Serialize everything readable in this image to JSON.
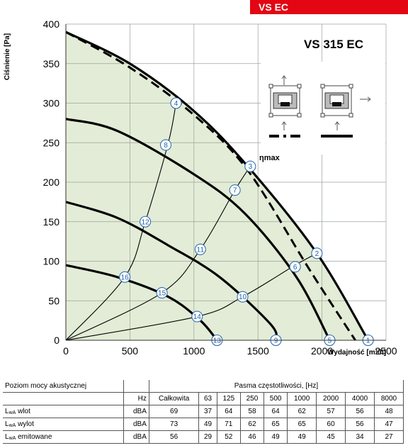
{
  "model_tag": "VS EC",
  "chart_data": {
    "type": "line",
    "title": "VS 315 EC",
    "xlabel": "Wydajność [m³/h]",
    "ylabel": "Ciśnienie [Pa]",
    "xlim": [
      0,
      2500
    ],
    "ylim": [
      0,
      400
    ],
    "x_ticks": [
      0,
      500,
      1000,
      1500,
      2000,
      2500
    ],
    "y_ticks": [
      0,
      50,
      100,
      150,
      200,
      250,
      300,
      350,
      400
    ],
    "grid": true,
    "eta_label": "ηmax",
    "fan_curves": [
      {
        "points": [
          [
            0,
            390
          ],
          [
            500,
            350
          ],
          [
            1000,
            290
          ],
          [
            1420,
            220
          ],
          [
            1960,
            110
          ],
          [
            2360,
            0
          ]
        ]
      },
      {
        "points": [
          [
            0,
            280
          ],
          [
            400,
            265
          ],
          [
            1000,
            210
          ],
          [
            1400,
            160
          ],
          [
            1800,
            80
          ],
          [
            2060,
            0
          ]
        ]
      },
      {
        "points": [
          [
            0,
            175
          ],
          [
            400,
            155
          ],
          [
            800,
            120
          ],
          [
            1200,
            80
          ],
          [
            1600,
            20
          ],
          [
            1640,
            0
          ]
        ]
      },
      {
        "points": [
          [
            0,
            95
          ],
          [
            400,
            80
          ],
          [
            800,
            55
          ],
          [
            1050,
            25
          ],
          [
            1180,
            0
          ]
        ]
      }
    ],
    "max_efficiency_line": {
      "points": [
        [
          0,
          390
        ],
        [
          500,
          345
        ],
        [
          1000,
          285
        ],
        [
          1420,
          215
        ],
        [
          1900,
          90
        ],
        [
          2260,
          0
        ]
      ]
    },
    "system_curves": [
      {
        "points": [
          [
            0,
            0
          ],
          [
            460,
            80
          ],
          [
            620,
            150
          ],
          [
            800,
            250
          ],
          [
            860,
            300
          ]
        ]
      },
      {
        "points": [
          [
            0,
            0
          ],
          [
            750,
            60
          ],
          [
            1050,
            115
          ],
          [
            1320,
            190
          ],
          [
            1440,
            220
          ]
        ]
      },
      {
        "points": [
          [
            0,
            0
          ],
          [
            1025,
            30
          ],
          [
            1380,
            55
          ],
          [
            1790,
            95
          ],
          [
            1960,
            110
          ]
        ]
      }
    ],
    "operating_points": [
      {
        "label": "1",
        "x": 2360,
        "y": 0
      },
      {
        "label": "2",
        "x": 1960,
        "y": 110
      },
      {
        "label": "3",
        "x": 1440,
        "y": 220
      },
      {
        "label": "4",
        "x": 860,
        "y": 300
      },
      {
        "label": "5",
        "x": 2060,
        "y": 0
      },
      {
        "label": "6",
        "x": 1790,
        "y": 93
      },
      {
        "label": "7",
        "x": 1320,
        "y": 190
      },
      {
        "label": "8",
        "x": 780,
        "y": 247
      },
      {
        "label": "9",
        "x": 1640,
        "y": 0
      },
      {
        "label": "10",
        "x": 1380,
        "y": 55
      },
      {
        "label": "11",
        "x": 1050,
        "y": 115
      },
      {
        "label": "12",
        "x": 620,
        "y": 150
      },
      {
        "label": "13",
        "x": 1180,
        "y": 0
      },
      {
        "label": "14",
        "x": 1025,
        "y": 30
      },
      {
        "label": "15",
        "x": 750,
        "y": 60
      },
      {
        "label": "16",
        "x": 460,
        "y": 80
      }
    ],
    "colors": {
      "fill": "#e3ecd6",
      "grid": "#9aa39a",
      "curve": "#000000"
    }
  },
  "noise_table": {
    "row_title": "Poziom mocy akustycznej",
    "band_title": "Pasma częstotliwości, [Hz]",
    "hz_label": "Hz",
    "columns": [
      "Całkowita",
      "63",
      "125",
      "250",
      "500",
      "1000",
      "2000",
      "4000",
      "8000"
    ],
    "rows": [
      {
        "prefix": "L",
        "sub": "wA",
        "suffix": " wlot",
        "unit": "dBA",
        "values": [
          "69",
          "37",
          "64",
          "58",
          "64",
          "62",
          "57",
          "56",
          "48"
        ]
      },
      {
        "prefix": "L",
        "sub": "wA",
        "suffix": " wylot",
        "unit": "dBA",
        "values": [
          "73",
          "49",
          "71",
          "62",
          "65",
          "65",
          "60",
          "56",
          "47"
        ]
      },
      {
        "prefix": "L",
        "sub": "wA",
        "suffix": " emitowane",
        "unit": "dBA",
        "values": [
          "56",
          "29",
          "52",
          "46",
          "49",
          "49",
          "45",
          "34",
          "27"
        ]
      }
    ]
  }
}
